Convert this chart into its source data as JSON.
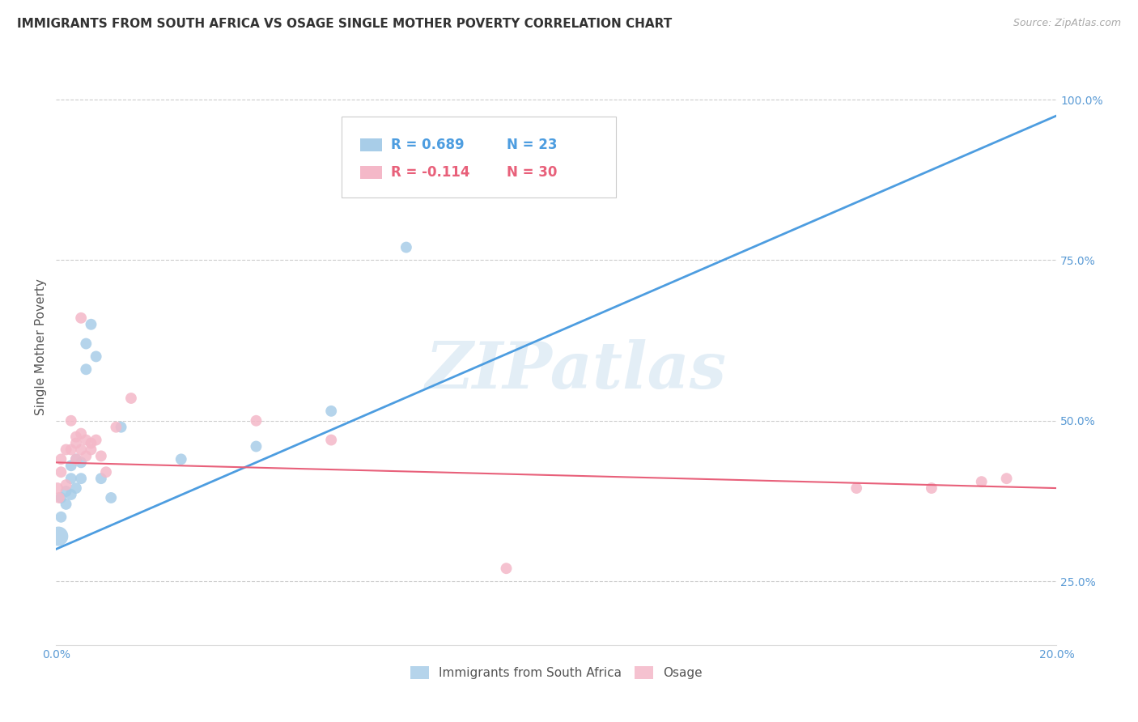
{
  "title": "IMMIGRANTS FROM SOUTH AFRICA VS OSAGE SINGLE MOTHER POVERTY CORRELATION CHART",
  "source": "Source: ZipAtlas.com",
  "ylabel": "Single Mother Poverty",
  "watermark": "ZIPatlas",
  "xlim": [
    0.0,
    0.2
  ],
  "ylim": [
    0.15,
    1.08
  ],
  "x_ticks": [
    0.0,
    0.04,
    0.08,
    0.12,
    0.16,
    0.2
  ],
  "x_tick_labels": [
    "0.0%",
    "",
    "",
    "",
    "",
    "20.0%"
  ],
  "y_ticks_right": [
    0.25,
    0.5,
    0.75,
    1.0
  ],
  "y_tick_labels_right": [
    "25.0%",
    "50.0%",
    "75.0%",
    "100.0%"
  ],
  "legend_blue_r": "0.689",
  "legend_blue_n": "23",
  "legend_pink_r": "-0.114",
  "legend_pink_n": "30",
  "legend_label_blue": "Immigrants from South Africa",
  "legend_label_pink": "Osage",
  "blue_color": "#a8cde8",
  "pink_color": "#f4b8c8",
  "blue_line_color": "#4d9de0",
  "pink_line_color": "#e8607a",
  "blue_scatter_x": [
    0.0005,
    0.001,
    0.001,
    0.002,
    0.002,
    0.003,
    0.003,
    0.003,
    0.004,
    0.004,
    0.005,
    0.005,
    0.006,
    0.006,
    0.007,
    0.008,
    0.009,
    0.011,
    0.013,
    0.025,
    0.04,
    0.055,
    0.07
  ],
  "blue_scatter_y": [
    0.32,
    0.35,
    0.38,
    0.37,
    0.39,
    0.41,
    0.43,
    0.385,
    0.44,
    0.395,
    0.435,
    0.41,
    0.58,
    0.62,
    0.65,
    0.6,
    0.41,
    0.38,
    0.49,
    0.44,
    0.46,
    0.515,
    0.77
  ],
  "blue_scatter_size": [
    300,
    100,
    100,
    100,
    100,
    100,
    100,
    100,
    100,
    100,
    100,
    100,
    100,
    100,
    100,
    100,
    100,
    100,
    100,
    100,
    100,
    100,
    100
  ],
  "pink_scatter_x": [
    0.0003,
    0.0006,
    0.001,
    0.001,
    0.002,
    0.002,
    0.003,
    0.003,
    0.004,
    0.004,
    0.004,
    0.005,
    0.005,
    0.006,
    0.006,
    0.007,
    0.007,
    0.008,
    0.009,
    0.01,
    0.012,
    0.015,
    0.04,
    0.055,
    0.09,
    0.16,
    0.175,
    0.185,
    0.19,
    0.005
  ],
  "pink_scatter_y": [
    0.395,
    0.38,
    0.42,
    0.44,
    0.4,
    0.455,
    0.455,
    0.5,
    0.44,
    0.465,
    0.475,
    0.455,
    0.48,
    0.445,
    0.47,
    0.455,
    0.465,
    0.47,
    0.445,
    0.42,
    0.49,
    0.535,
    0.5,
    0.47,
    0.27,
    0.395,
    0.395,
    0.405,
    0.41,
    0.66
  ],
  "pink_scatter_size": [
    100,
    100,
    100,
    100,
    100,
    100,
    100,
    100,
    100,
    100,
    100,
    100,
    100,
    100,
    100,
    100,
    100,
    100,
    100,
    100,
    100,
    100,
    100,
    100,
    100,
    100,
    100,
    100,
    100,
    100
  ],
  "blue_line_x0": 0.0,
  "blue_line_x1": 0.2,
  "blue_line_y0": 0.3,
  "blue_line_y1": 0.975,
  "pink_line_x0": 0.0,
  "pink_line_x1": 0.2,
  "pink_line_y0": 0.435,
  "pink_line_y1": 0.395,
  "title_fontsize": 11,
  "axis_tick_color": "#5b9bd5",
  "grid_color": "#cccccc",
  "background_color": "#ffffff"
}
